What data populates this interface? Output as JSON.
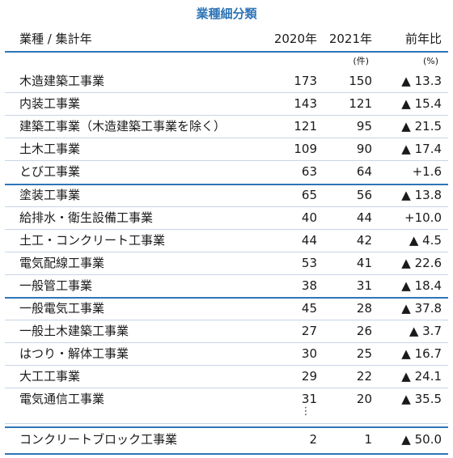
{
  "title": "業種細分類",
  "header": {
    "name": "業種 / 集計年",
    "y2020": "2020年",
    "y2021": "2021年",
    "ratio": "前年比"
  },
  "units": {
    "count": "(件)",
    "percent": "(%)"
  },
  "rows": [
    {
      "name": "木造建築工事業",
      "y2020": "173",
      "y2021": "150",
      "ratio": "▲ 13.3"
    },
    {
      "name": "内装工事業",
      "y2020": "143",
      "y2021": "121",
      "ratio": "▲ 15.4"
    },
    {
      "name": "建築工事業（木造建築工事業を除く）",
      "y2020": "121",
      "y2021": "95",
      "ratio": "▲ 21.5"
    },
    {
      "name": "土木工事業",
      "y2020": "109",
      "y2021": "90",
      "ratio": "▲ 17.4"
    },
    {
      "name": "とび工事業",
      "y2020": "63",
      "y2021": "64",
      "ratio": "+1.6"
    },
    {
      "name": "塗装工事業",
      "y2020": "65",
      "y2021": "56",
      "ratio": "▲ 13.8"
    },
    {
      "name": "給排水・衛生設備工事業",
      "y2020": "40",
      "y2021": "44",
      "ratio": "+10.0"
    },
    {
      "name": "土工・コンクリート工事業",
      "y2020": "44",
      "y2021": "42",
      "ratio": "▲ 4.5"
    },
    {
      "name": "電気配線工事業",
      "y2020": "53",
      "y2021": "41",
      "ratio": "▲ 22.6"
    },
    {
      "name": "一般管工事業",
      "y2020": "38",
      "y2021": "31",
      "ratio": "▲ 18.4"
    },
    {
      "name": "一般電気工事業",
      "y2020": "45",
      "y2021": "28",
      "ratio": "▲ 37.8"
    },
    {
      "name": "一般土木建築工事業",
      "y2020": "27",
      "y2021": "26",
      "ratio": "▲ 3.7"
    },
    {
      "name": "はつり・解体工事業",
      "y2020": "30",
      "y2021": "25",
      "ratio": "▲ 16.7"
    },
    {
      "name": "大工工事業",
      "y2020": "29",
      "y2021": "22",
      "ratio": "▲ 24.1"
    },
    {
      "name": "電気通信工事業",
      "y2020": "31",
      "y2021": "20",
      "ratio": "▲ 35.5"
    }
  ],
  "ellipsis": "⋮",
  "last_row": {
    "name": "コンクリートブロック工事業",
    "y2020": "2",
    "y2021": "1",
    "ratio": "▲ 50.0"
  }
}
